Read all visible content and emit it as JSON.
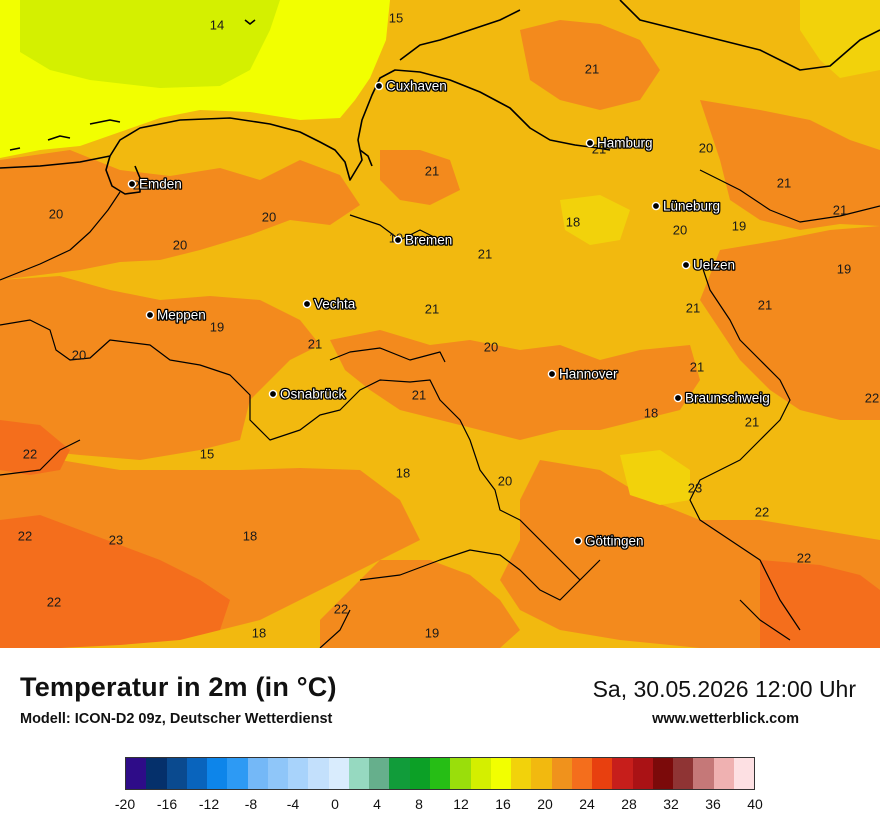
{
  "title": "Temperatur in 2m (in °C)",
  "subtitle": "Modell: ICON-D2 09z, Deutscher Wetterdienst",
  "datetime": "Sa, 30.05.2026 12:00 Uhr",
  "website": "www.wetterblick.com",
  "colors": {
    "t14": "#d4f000",
    "t16": "#f2ff00",
    "t18": "#f2b90f",
    "t20": "#f38a1d",
    "t22": "#f46e1c",
    "t24": "#e8400f",
    "coast_line": "#000000"
  },
  "cities": [
    {
      "name": "Cuxhaven"
    },
    {
      "name": "Hamburg"
    },
    {
      "name": "Emden"
    },
    {
      "name": "Lüneburg"
    },
    {
      "name": "Bremen"
    },
    {
      "name": "Uelzen"
    },
    {
      "name": "Meppen"
    },
    {
      "name": "Vechta"
    },
    {
      "name": "Hannover"
    },
    {
      "name": "Osnabrück"
    },
    {
      "name": "Braunschweig"
    },
    {
      "name": "Göttingen"
    }
  ],
  "temperature_values": [
    "14",
    "15",
    "21",
    "21",
    "20",
    "21",
    "21",
    "21",
    "20",
    "18",
    "20",
    "19",
    "21",
    "20",
    "19",
    "21",
    "19",
    "20",
    "21",
    "19",
    "21",
    "20",
    "21",
    "20",
    "21",
    "21",
    "21",
    "21",
    "22",
    "22",
    "18",
    "21",
    "15",
    "18",
    "20",
    "23",
    "22",
    "22",
    "23",
    "18",
    "22",
    "22",
    "22",
    "18",
    "19",
    "22"
  ],
  "legend": {
    "colors": [
      "#2e0c88",
      "#05306b",
      "#0a4a8f",
      "#0964bd",
      "#0d85ea",
      "#2d9af4",
      "#74b8f7",
      "#8fc6f9",
      "#a8d3fb",
      "#c3e0fc",
      "#d9ecfd",
      "#96d9c0",
      "#66af8c",
      "#119c3a",
      "#0ca026",
      "#26be15",
      "#9ade0b",
      "#d4ef00",
      "#f2ff00",
      "#f2d20b",
      "#f2b90f",
      "#f0921c",
      "#f46e1c",
      "#e8400f",
      "#c71e1b",
      "#aa1215",
      "#7b0a0a",
      "#8f3434",
      "#c57878",
      "#efb1b1",
      "#fde0e3"
    ],
    "ticks": [
      "-20",
      "-16",
      "-12",
      "-8",
      "-4",
      "0",
      "4",
      "8",
      "12",
      "16",
      "20",
      "24",
      "28",
      "32",
      "36",
      "40"
    ]
  }
}
